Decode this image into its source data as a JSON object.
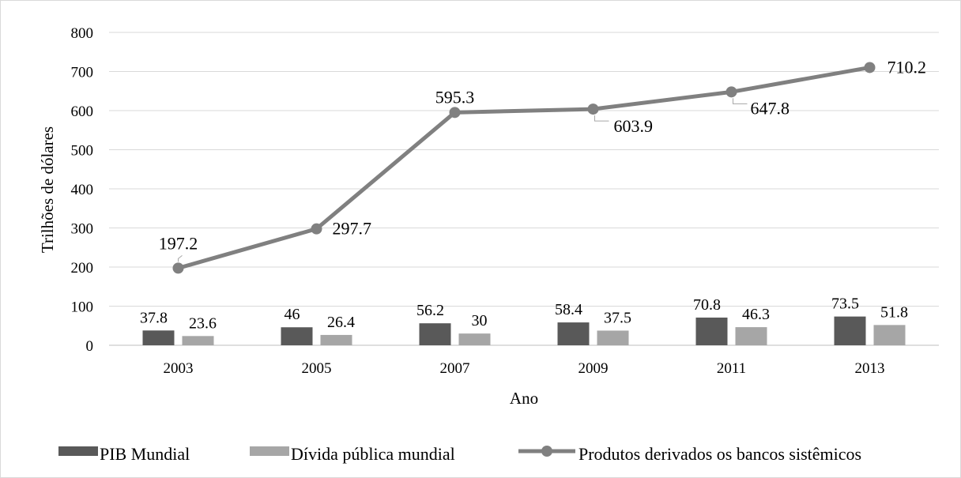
{
  "colors": {
    "pib": "#595959",
    "divida": "#a6a6a6",
    "derivados": "#808080",
    "grid": "#d9d9d9",
    "frame": "#d9d9d9"
  },
  "chart_data": {
    "type": "bar",
    "categories": [
      "2003",
      "2005",
      "2007",
      "2009",
      "2011",
      "2013"
    ],
    "series": [
      {
        "name": "PIB Mundial",
        "type": "bar",
        "values": [
          37.8,
          46,
          56.2,
          58.4,
          70.8,
          73.5
        ],
        "labels": [
          "37.8",
          "46",
          "56.2",
          "58.4",
          "70.8",
          "73.5"
        ]
      },
      {
        "name": "Dívida pública mundial",
        "type": "bar",
        "values": [
          23.6,
          26.4,
          30,
          37.5,
          46.3,
          51.8
        ],
        "labels": [
          "23.6",
          "26.4",
          "30",
          "37.5",
          "46.3",
          "51.8"
        ]
      },
      {
        "name": "Produtos derivados os bancos sistêmicos",
        "type": "line",
        "values": [
          197.2,
          297.7,
          595.3,
          603.9,
          647.8,
          710.2
        ],
        "labels": [
          "197.2",
          "297.7",
          "595.3",
          "603.9",
          "647.8",
          "710.2"
        ]
      }
    ],
    "xlabel": "Ano",
    "ylabel": "Trilhões de dólares",
    "ylim": [
      0,
      800
    ],
    "yticks": [
      "0",
      "100",
      "200",
      "300",
      "400",
      "500",
      "600",
      "700",
      "800"
    ],
    "grid": true,
    "legend_position": "bottom"
  }
}
